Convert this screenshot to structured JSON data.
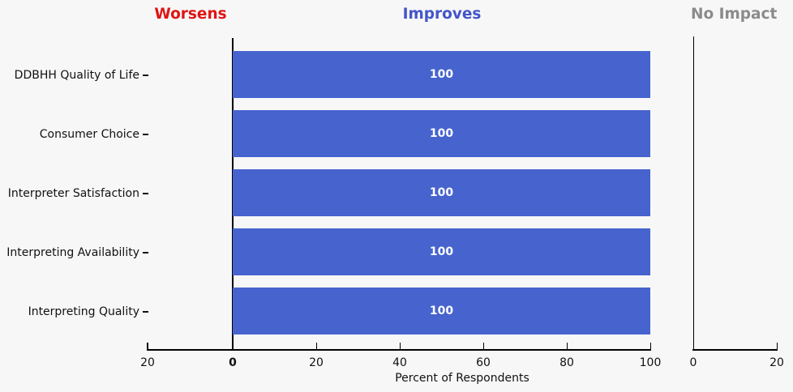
{
  "headers": [
    {
      "label": "Worsens",
      "color": "#e01414"
    },
    {
      "label": "Improves",
      "color": "#4355c9"
    },
    {
      "label": "No Impact",
      "color": "#8b8b8b"
    }
  ],
  "colors": {
    "background": "#f7f7f7",
    "bar": "#4663ce",
    "bar_label_text": "#ffffff",
    "axis": "#000000"
  },
  "chart_data": {
    "type": "bar",
    "orientation": "horizontal",
    "title": "",
    "xlabel": "Percent of Respondents",
    "ylabel": "",
    "categories": [
      "DDBHH Quality of Life",
      "Consumer Choice",
      "Interpreter Satisfaction",
      "Interpreting Availability",
      "Interpreting Quality"
    ],
    "series": [
      {
        "name": "Worsens",
        "values": [
          0,
          0,
          0,
          0,
          0
        ]
      },
      {
        "name": "Improves",
        "values": [
          100,
          100,
          100,
          100,
          100
        ]
      },
      {
        "name": "No Impact",
        "values": [
          0,
          0,
          0,
          0,
          0
        ]
      }
    ],
    "bar_value_labels": [
      "100",
      "100",
      "100",
      "100",
      "100"
    ],
    "main_axis_ticks": [
      "20",
      "0",
      "20",
      "40",
      "60",
      "80",
      "100"
    ],
    "no_impact_axis_ticks": [
      "0",
      "20"
    ],
    "xlim_main": [
      -20,
      100
    ],
    "xlim_no_impact": [
      0,
      20
    ],
    "grid": false,
    "legend_position": "none"
  }
}
